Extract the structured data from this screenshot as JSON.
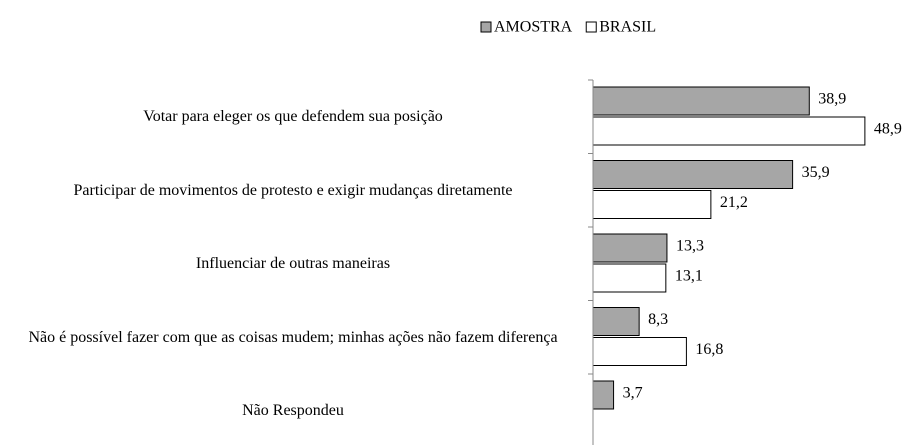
{
  "chart_data": {
    "type": "bar",
    "orientation": "horizontal",
    "categories": [
      "Votar para eleger os que defendem sua posição",
      "Participar de movimentos de protesto e exigir mudanças diretamente",
      "Influenciar de outras maneiras",
      "Não é possível fazer com que as coisas mudem; minhas ações não fazem diferença",
      "Não Respondeu"
    ],
    "series": [
      {
        "name": "AMOSTRA",
        "color": "#a6a6a6",
        "values": [
          38.9,
          35.9,
          13.3,
          8.3,
          3.7
        ],
        "value_labels": [
          "38,9",
          "35,9",
          "13,3",
          "8,3",
          "3,7"
        ]
      },
      {
        "name": "BRASIL",
        "color": "#ffffff",
        "values": [
          48.9,
          21.2,
          13.1,
          16.8,
          null
        ],
        "value_labels": [
          "48,9",
          "21,2",
          "13,1",
          "16,8",
          null
        ]
      }
    ],
    "xlim": [
      0,
      50
    ],
    "legend": "top"
  }
}
